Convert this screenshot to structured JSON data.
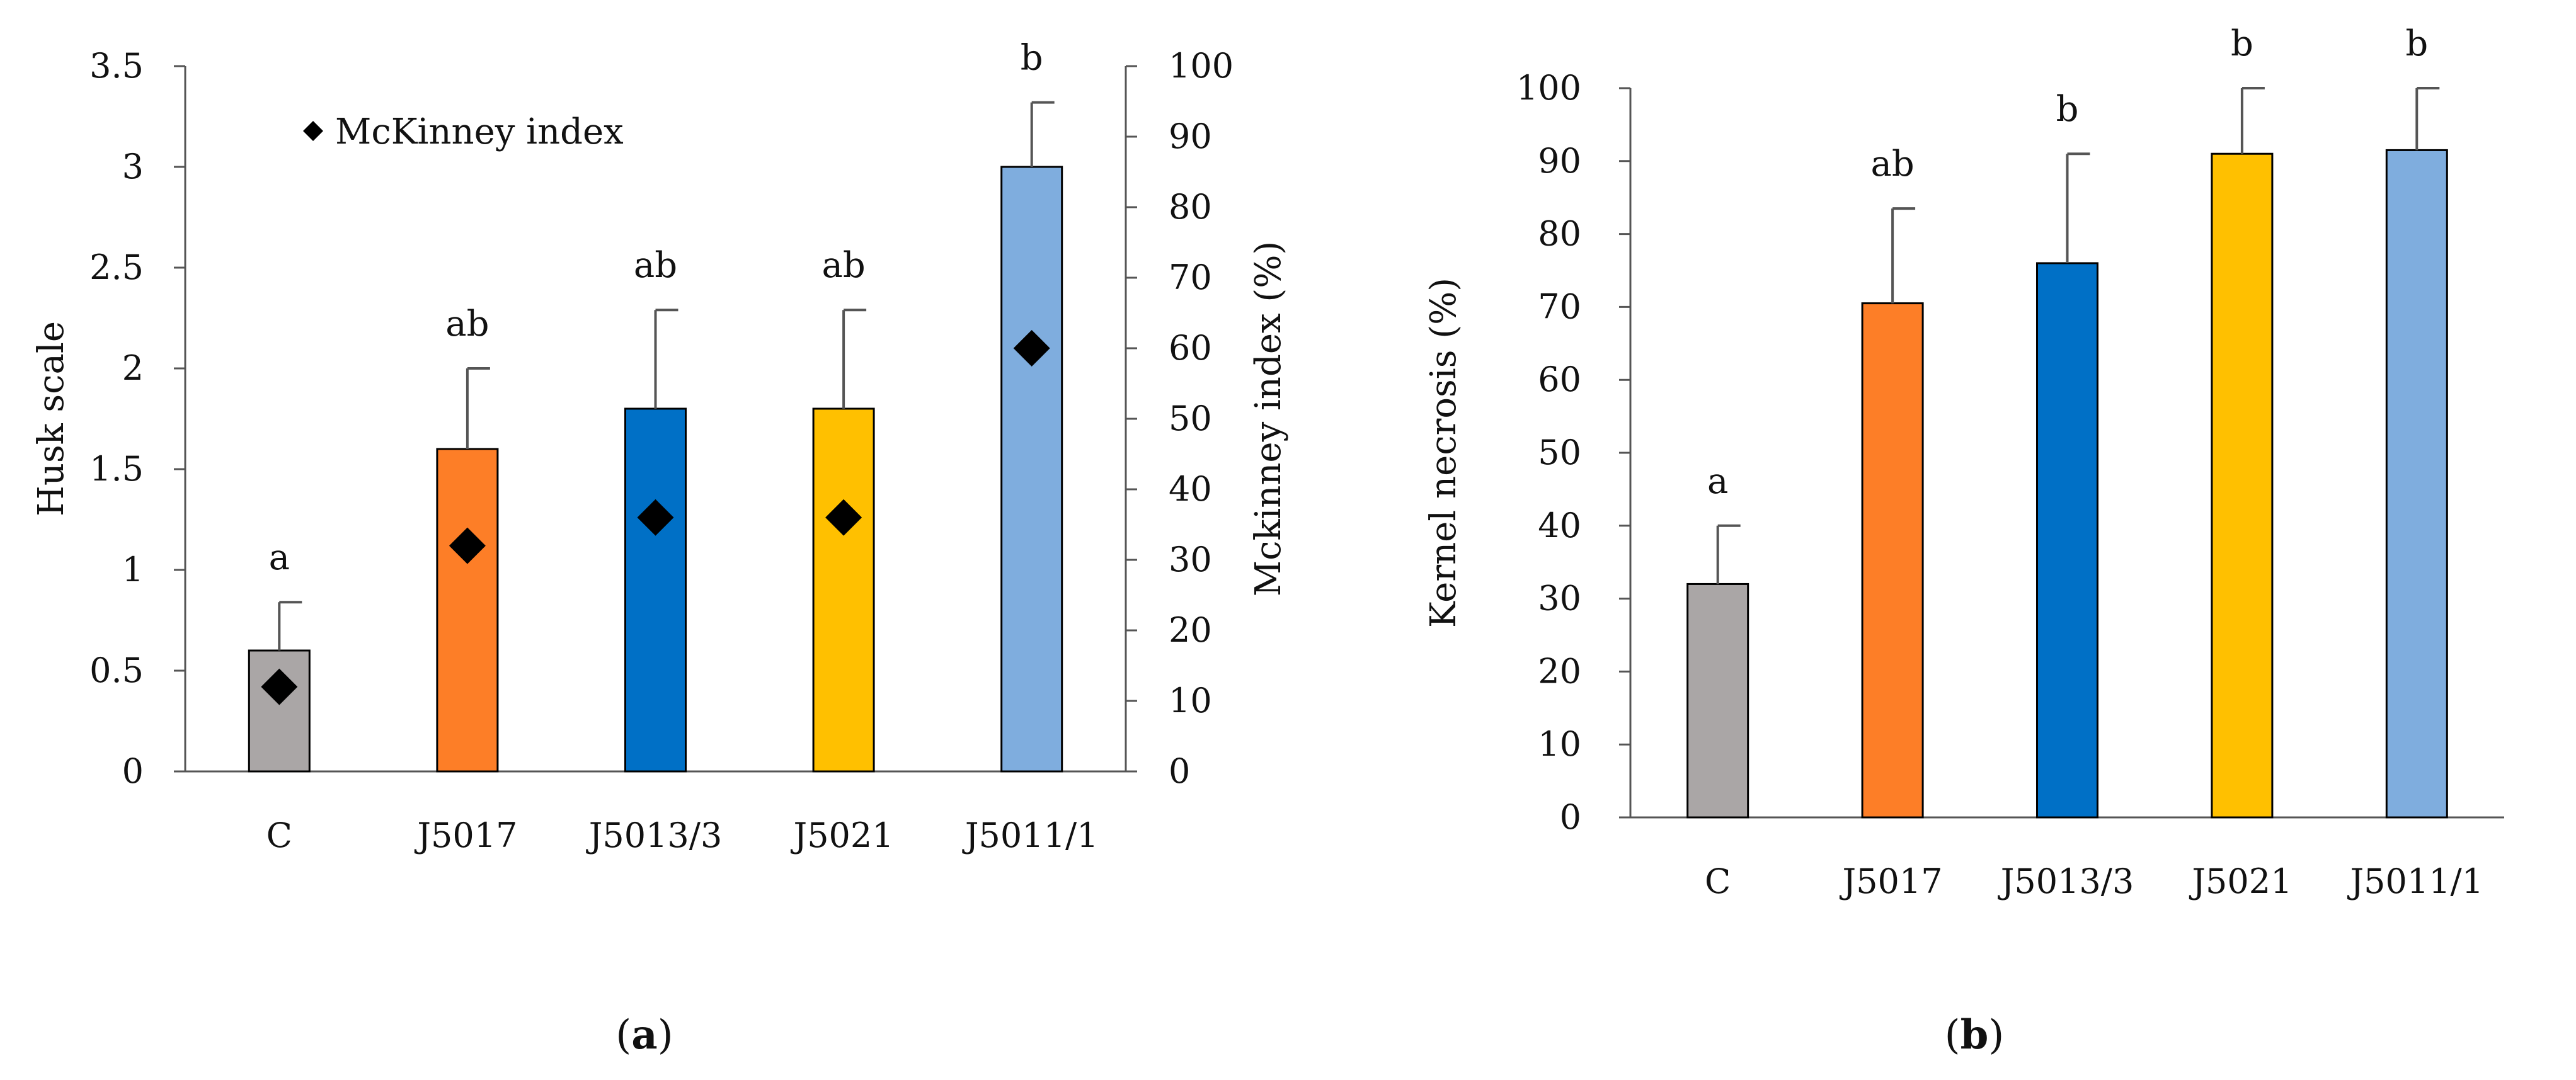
{
  "chart_data": [
    {
      "panel": "a",
      "panel_label_prefix": "(",
      "panel_label_letter": "a",
      "panel_label_suffix": ")",
      "type": "bar",
      "categories": [
        "C",
        "J5017",
        "J5013/3",
        "J5021",
        "J5011/1"
      ],
      "series": [
        {
          "name": "Husk scale",
          "axis": "left",
          "values": [
            0.6,
            1.6,
            1.8,
            1.8,
            3.0
          ],
          "error_up": [
            0.24,
            0.4,
            0.49,
            0.49,
            0.32
          ],
          "colors": [
            "#aaa6a6",
            "#fd7e27",
            "#0070c6",
            "#ffc000",
            "#7fadde"
          ]
        },
        {
          "name": "McKinney index",
          "type": "scatter",
          "marker": "diamond",
          "axis": "right",
          "values": [
            12,
            32,
            36,
            36,
            60
          ],
          "color": "#000000"
        }
      ],
      "significance": [
        "a",
        "ab",
        "ab",
        "ab",
        "b"
      ],
      "ylabel": "Husk scale",
      "ylim": [
        0,
        3.5
      ],
      "yticks": [
        "0",
        "0.5",
        "1",
        "1.5",
        "2",
        "2.5",
        "3",
        "3.5"
      ],
      "y2label": "Mckinney index (%)",
      "y2lim": [
        0,
        100
      ],
      "y2ticks": [
        "0",
        "10",
        "20",
        "30",
        "40",
        "50",
        "60",
        "70",
        "80",
        "90",
        "100"
      ],
      "legend": {
        "label": "McKinney index",
        "placement": "top-left"
      },
      "grid": false
    },
    {
      "panel": "b",
      "panel_label_prefix": "(",
      "panel_label_letter": "b",
      "panel_label_suffix": ")",
      "type": "bar",
      "categories": [
        "C",
        "J5017",
        "J5013/3",
        "J5021",
        "J5011/1"
      ],
      "series": [
        {
          "name": "Kernel necrosis",
          "axis": "left",
          "values": [
            32,
            70.5,
            76,
            91,
            91.5
          ],
          "error_up": [
            8,
            13,
            15,
            9,
            8.5
          ],
          "colors": [
            "#aaa6a6",
            "#fd7e27",
            "#0070c6",
            "#ffc000",
            "#7fadde"
          ]
        }
      ],
      "significance": [
        "a",
        "ab",
        "b",
        "b",
        "b"
      ],
      "ylabel": "Kernel necrosis (%)",
      "ylim": [
        0,
        100
      ],
      "yticks": [
        "0",
        "10",
        "20",
        "30",
        "40",
        "50",
        "60",
        "70",
        "80",
        "90",
        "100"
      ],
      "grid": false
    }
  ]
}
